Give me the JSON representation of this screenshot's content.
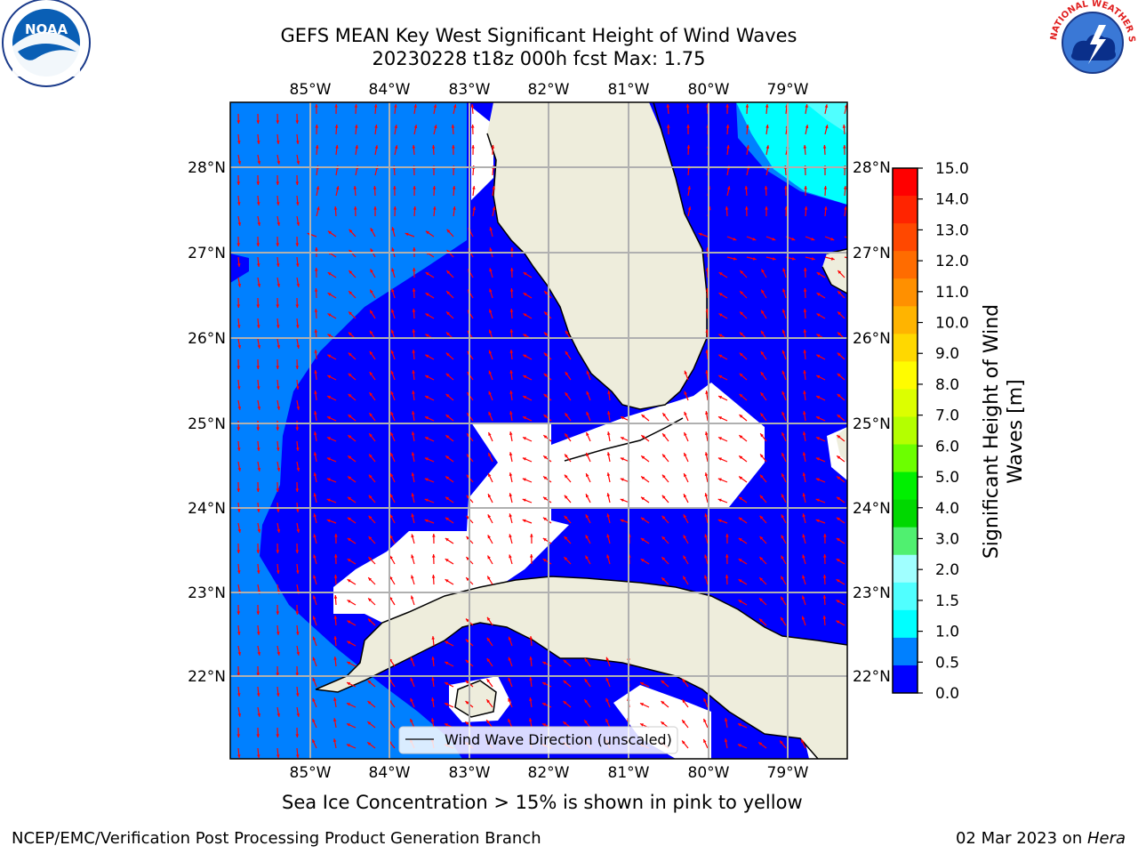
{
  "title_line1": "GEFS MEAN Key West Significant Height of Wind Waves",
  "title_line2": "20230228 t18z 000h fcst   Max: 1.75",
  "lon_labels": [
    "85°W",
    "84°W",
    "83°W",
    "82°W",
    "81°W",
    "80°W",
    "79°W"
  ],
  "lat_labels": [
    "28°N",
    "27°N",
    "26°N",
    "25°N",
    "24°N",
    "23°N",
    "22°N"
  ],
  "legend_label": "Wind Wave Direction (unscaled)",
  "colorbar": {
    "label_line1": "Significant Height of Wind",
    "label_line2": "Waves [m]",
    "ticks": [
      "15.0",
      "14.0",
      "13.0",
      "12.0",
      "11.0",
      "10.0",
      "9.0",
      "8.0",
      "7.0",
      "6.0",
      "5.0",
      "4.0",
      "3.0",
      "2.0",
      "1.5",
      "1.0",
      "0.5",
      "0.0"
    ],
    "colors_top_to_bottom": [
      "#ff0000",
      "#ff2400",
      "#ff4800",
      "#ff6c00",
      "#ff9000",
      "#ffb400",
      "#ffd800",
      "#fffc00",
      "#dcff00",
      "#b4ff00",
      "#6cff00",
      "#00f000",
      "#00d800",
      "#50f070",
      "#a0ffff",
      "#50ffff",
      "#00ffff",
      "#0080ff",
      "#0000ff"
    ]
  },
  "map_colors": {
    "ocean_0_05": "#0000ff",
    "ocean_05_10": "#0080ff",
    "ocean_10_15": "#00ffff",
    "ocean_15_20": "#50ffff",
    "land": "#eeeddc",
    "masked": "#ffffff",
    "arrows": "#ff0000",
    "grid": "#b0b0b0"
  },
  "caption": "Sea Ice Concentration > 15% is shown in pink to yellow",
  "footer_left": "NCEP/EMC/Verification Post Processing Product Generation Branch",
  "footer_right_prefix": "02 Mar 2023 on ",
  "footer_right_host": "Hera",
  "logos": {
    "noaa_text": "NOAA",
    "nws_text": "NATIONAL WEATHER SERVICE"
  }
}
